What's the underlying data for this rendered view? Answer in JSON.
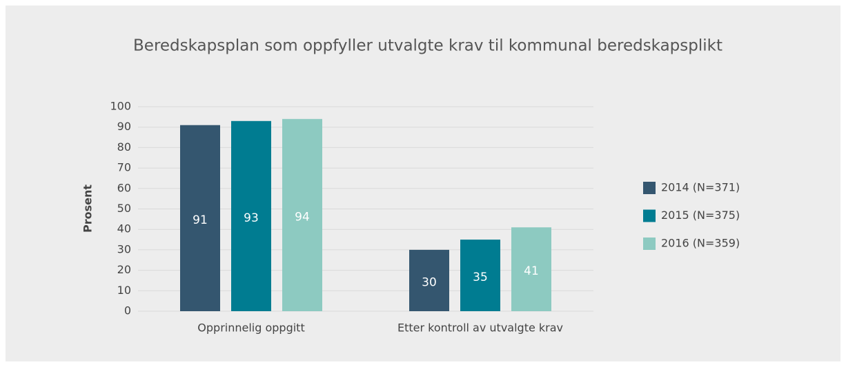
{
  "chart_data": {
    "type": "bar",
    "title": "Beredskapsplan som oppfyller utvalgte krav til kommunal beredskapsplikt",
    "y_label": "Prosent",
    "categories": [
      "Opprinnelig oppgitt",
      "Etter kontroll av utvalgte krav"
    ],
    "series": [
      {
        "name": "2014 (N=371)",
        "color": "#34566f",
        "values": [
          91,
          30
        ]
      },
      {
        "name": "2015 (N=375)",
        "color": "#007c91",
        "values": [
          93,
          35
        ]
      },
      {
        "name": "2016 (N=359)",
        "color": "#8dcac1",
        "values": [
          94,
          41
        ]
      }
    ],
    "ylim": [
      0,
      100
    ],
    "yticks": [
      0,
      10,
      20,
      30,
      40,
      50,
      60,
      70,
      80,
      90,
      100
    ],
    "grid": true,
    "legend": "right",
    "value_labels_inside": true
  }
}
